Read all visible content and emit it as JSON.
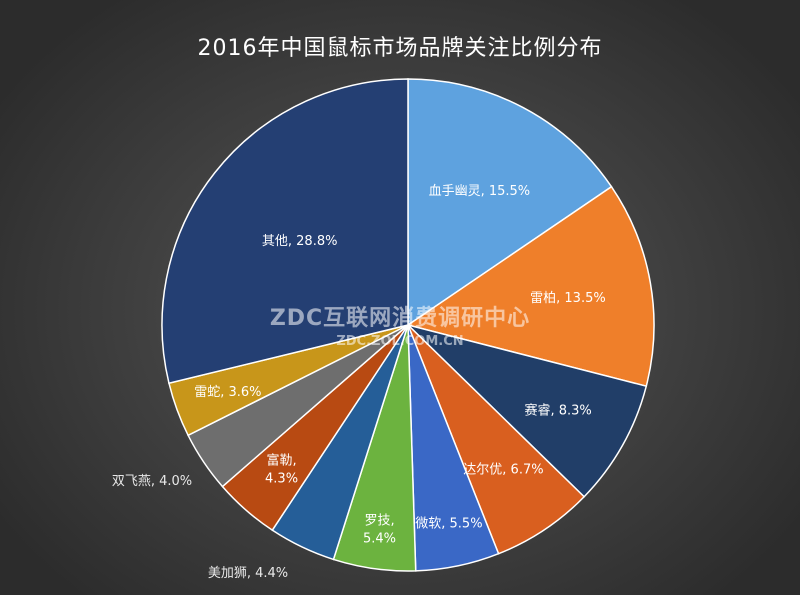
{
  "chart_data": {
    "type": "pie",
    "title": "2016年中国鼠标市场品牌关注比例分布",
    "slices": [
      {
        "label": "血手幽灵",
        "value": 15.5,
        "display": "血手幽灵, 15.5%",
        "color": "#5ea2df"
      },
      {
        "label": "雷柏",
        "value": 13.5,
        "display": "雷柏, 13.5%",
        "color": "#ef7f2a"
      },
      {
        "label": "赛睿",
        "value": 8.3,
        "display": "赛睿, 8.3%",
        "color": "#213e68"
      },
      {
        "label": "达尔优",
        "value": 6.7,
        "display": "达尔优, 6.7%",
        "color": "#d95f1f"
      },
      {
        "label": "微软",
        "value": 5.5,
        "display": "微软, 5.5%",
        "color": "#3a68c6"
      },
      {
        "label": "罗技",
        "value": 5.4,
        "display": "罗技, 5.4%",
        "color": "#6cb33f"
      },
      {
        "label": "美加狮",
        "value": 4.4,
        "display": "美加狮, 4.4%",
        "color": "#255e98"
      },
      {
        "label": "富勒",
        "value": 4.3,
        "display": "富勒, 4.3%",
        "color": "#b84a12"
      },
      {
        "label": "双飞燕",
        "value": 4.0,
        "display": "双飞燕, 4.0%",
        "color": "#6e6e6e"
      },
      {
        "label": "雷蛇",
        "value": 3.6,
        "display": "雷蛇, 3.6%",
        "color": "#c8961a"
      },
      {
        "label": "其他",
        "value": 28.8,
        "display": "其他, 28.8%",
        "color": "#243f73"
      }
    ],
    "unit": "%",
    "legend": "none",
    "grid": false
  },
  "watermark": {
    "main": "ZDC互联网消费调研中心",
    "sub": "ZDC.ZOL.COM.CN"
  }
}
